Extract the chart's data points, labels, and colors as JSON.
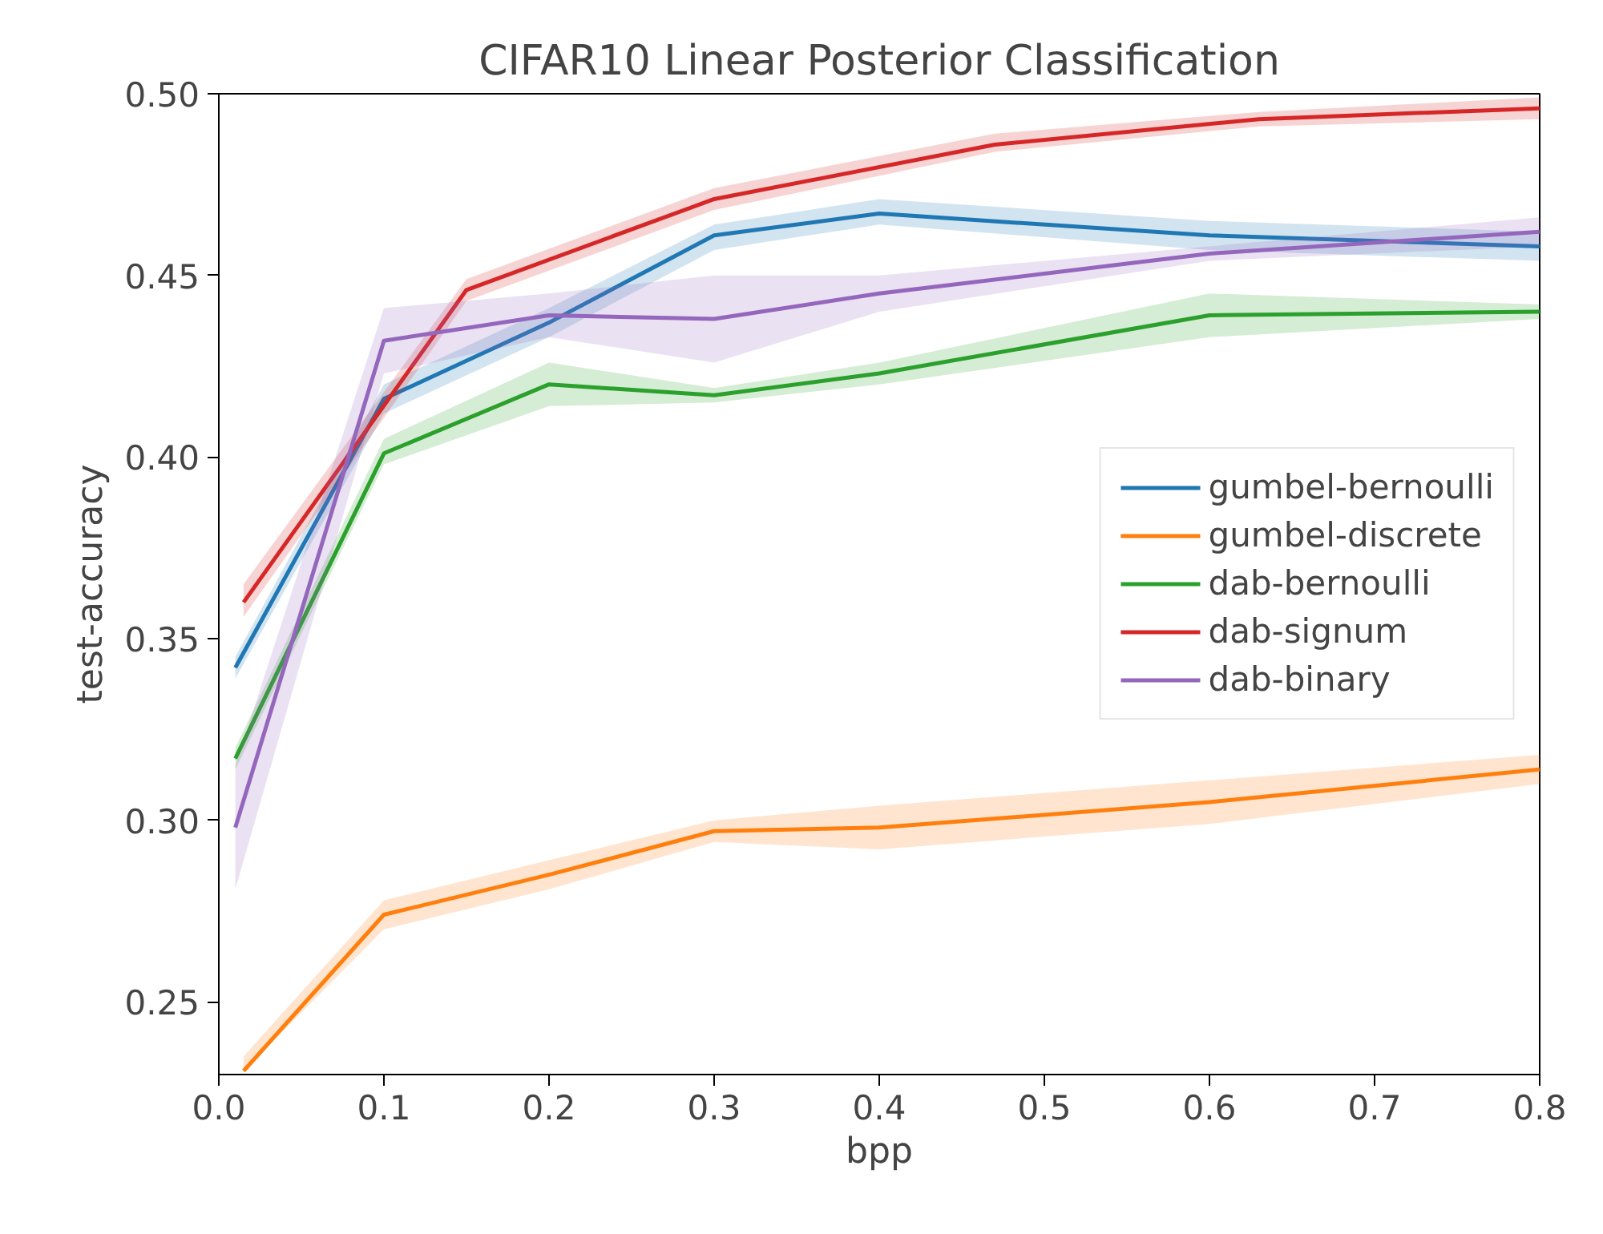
{
  "chart_data": {
    "type": "line",
    "title": "CIFAR10 Linear Posterior Classification",
    "xlabel": "bpp",
    "ylabel": "test-accuracy",
    "xlim": [
      0,
      0.8
    ],
    "ylim": [
      0.23,
      0.5
    ],
    "xticks": [
      {
        "value": 0,
        "label": "0.0"
      },
      0.1,
      0.2,
      0.3,
      0.4,
      0.5,
      0.6,
      0.7,
      0.8
    ],
    "yticks": [
      0.25,
      {
        "value": 0.3,
        "label": "0.30"
      },
      0.35,
      {
        "value": 0.4,
        "label": "0.40"
      },
      0.45,
      {
        "value": 0.5,
        "label": "0.50"
      }
    ],
    "grid": false,
    "legend": "right",
    "line_style": "solid",
    "marker": "none",
    "series": [
      {
        "name": "gumbel-bernoulli",
        "color": "#1f77b4",
        "x": [
          0.01,
          0.1,
          0.2,
          0.3,
          0.4,
          0.6,
          0.8
        ],
        "values": [
          0.342,
          0.416,
          0.437,
          0.461,
          0.467,
          0.461,
          0.458
        ],
        "lower": [
          0.339,
          0.412,
          0.433,
          0.457,
          0.464,
          0.457,
          0.454
        ],
        "upper": [
          0.345,
          0.42,
          0.441,
          0.464,
          0.471,
          0.465,
          0.462
        ]
      },
      {
        "name": "gumbel-discrete",
        "color": "#ff7f0e",
        "x": [
          0.015,
          0.1,
          0.2,
          0.3,
          0.4,
          0.6,
          0.8
        ],
        "values": [
          0.231,
          0.274,
          0.285,
          0.297,
          0.298,
          0.305,
          0.314
        ],
        "lower": [
          0.231,
          0.27,
          0.281,
          0.294,
          0.292,
          0.299,
          0.31
        ],
        "upper": [
          0.235,
          0.278,
          0.289,
          0.3,
          0.304,
          0.311,
          0.318
        ]
      },
      {
        "name": "dab-bernoulli",
        "color": "#2ca02c",
        "x": [
          0.01,
          0.1,
          0.2,
          0.3,
          0.4,
          0.6,
          0.8
        ],
        "values": [
          0.317,
          0.401,
          0.42,
          0.417,
          0.423,
          0.439,
          0.44
        ],
        "lower": [
          0.314,
          0.398,
          0.414,
          0.415,
          0.42,
          0.433,
          0.438
        ],
        "upper": [
          0.32,
          0.405,
          0.426,
          0.419,
          0.426,
          0.445,
          0.442
        ]
      },
      {
        "name": "dab-signum",
        "color": "#d62728",
        "x": [
          0.015,
          0.15,
          0.3,
          0.47,
          0.63,
          0.8
        ],
        "values": [
          0.36,
          0.446,
          0.471,
          0.486,
          0.493,
          0.496
        ],
        "lower": [
          0.356,
          0.443,
          0.468,
          0.484,
          0.491,
          0.493
        ],
        "upper": [
          0.365,
          0.449,
          0.474,
          0.489,
          0.495,
          0.499
        ]
      },
      {
        "name": "dab-binary",
        "color": "#9467bd",
        "x": [
          0.01,
          0.1,
          0.2,
          0.3,
          0.4,
          0.6,
          0.8
        ],
        "values": [
          0.298,
          0.432,
          0.439,
          0.438,
          0.445,
          0.456,
          0.462
        ],
        "lower": [
          0.281,
          0.423,
          0.433,
          0.426,
          0.44,
          0.454,
          0.458
        ],
        "upper": [
          0.315,
          0.441,
          0.445,
          0.45,
          0.45,
          0.458,
          0.466
        ]
      }
    ]
  }
}
